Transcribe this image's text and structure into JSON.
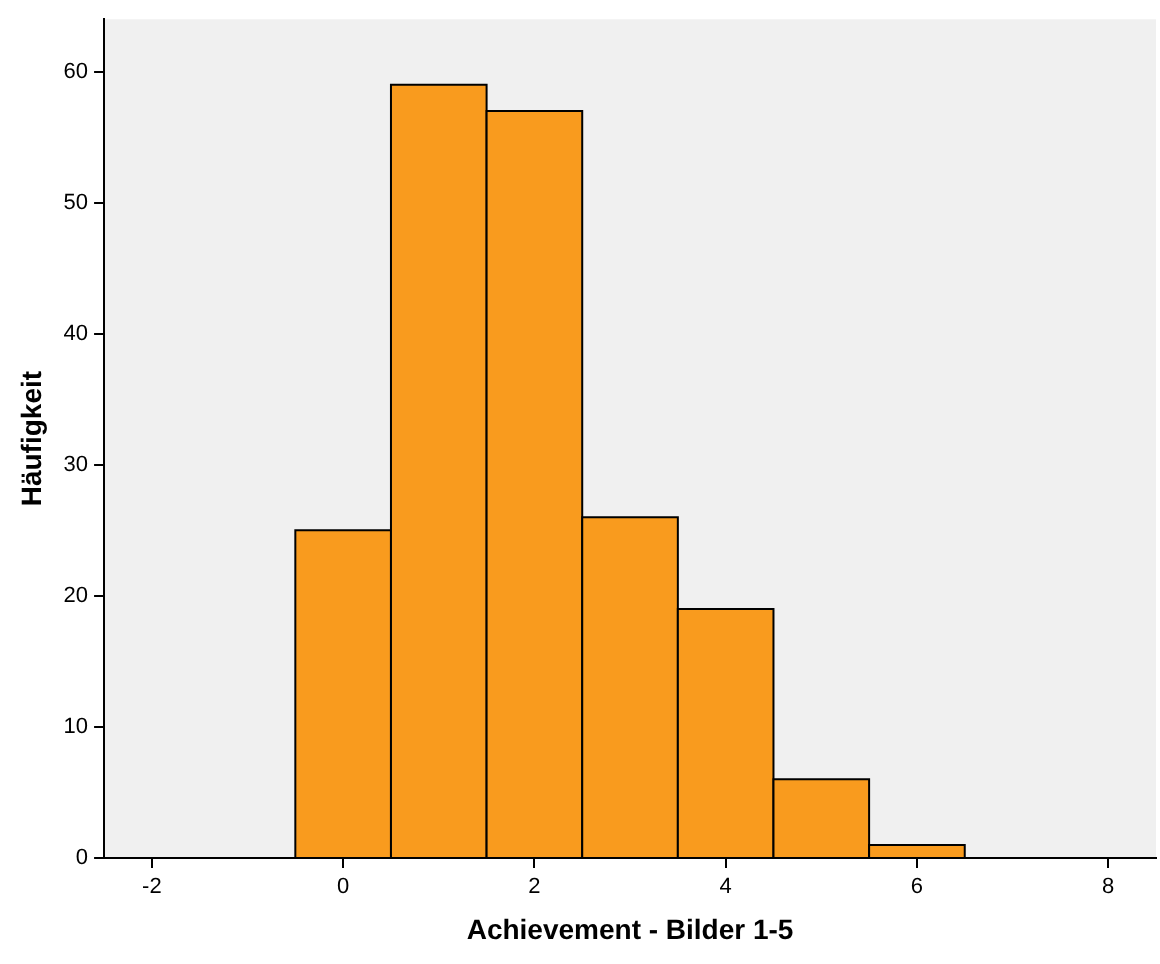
{
  "chart_data": {
    "type": "histogram",
    "xlabel": "Achievement - Bilder 1-5",
    "ylabel": "Häufigkeit",
    "bins": [
      -0.5,
      0.5,
      1.5,
      2.5,
      3.5,
      4.5,
      5.5,
      6.5
    ],
    "values": [
      25,
      59,
      57,
      26,
      19,
      6,
      1
    ],
    "color": "#f99b1e",
    "xlim": [
      -2.5,
      8.5
    ],
    "xticks": [
      -2,
      0,
      2,
      4,
      6,
      8
    ],
    "ylim": [
      0,
      64
    ],
    "yticks": [
      0,
      10,
      20,
      30,
      40,
      50,
      60
    ],
    "grid": false,
    "legend": false
  }
}
